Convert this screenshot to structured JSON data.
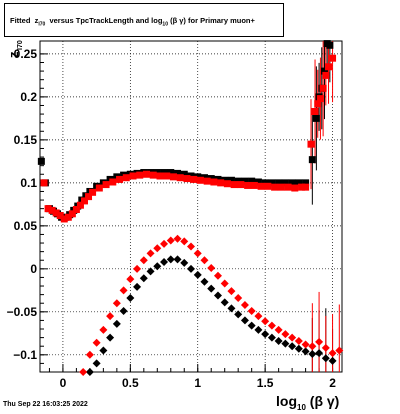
{
  "title": {
    "prefix": "Fitted",
    "z": "z",
    "z_sub": "I70",
    "middle": "versus TpcTrackLength and log",
    "log_sub": "10",
    "suffix": "(β γ) for Primary muon+"
  },
  "footer": "Thu Sep 22 16:03:25 2022",
  "xlabel": {
    "main": "log",
    "sub": "10",
    "tail": "(β γ)"
  },
  "ylabel": {
    "main": "z",
    "sub": "I70"
  },
  "chart_data": {
    "type": "scatter",
    "xlim": [
      -0.17,
      2.07
    ],
    "ylim": [
      -0.12,
      0.265
    ],
    "grid": true,
    "xticks": [
      {
        "v": 0,
        "label": "0"
      },
      {
        "v": 0.5,
        "label": "0.5"
      },
      {
        "v": 1,
        "label": "1"
      },
      {
        "v": 1.5,
        "label": "1.5"
      },
      {
        "v": 2,
        "label": "2"
      }
    ],
    "yticks": [
      {
        "v": -0.1,
        "label": "−0.1"
      },
      {
        "v": -0.05,
        "label": "−0.05"
      },
      {
        "v": 0,
        "label": "0"
      },
      {
        "v": 0.05,
        "label": "0.05"
      },
      {
        "v": 0.1,
        "label": "0.1"
      },
      {
        "v": 0.15,
        "label": "0.15"
      },
      {
        "v": 0.2,
        "label": "0.2"
      },
      {
        "v": 0.25,
        "label": "0.25"
      }
    ],
    "series": [
      {
        "color": "#000000",
        "marker": "square",
        "x": [
          -0.16,
          -0.13,
          -0.1,
          -0.07,
          -0.04,
          -0.01,
          0.02,
          0.05,
          0.08,
          0.11,
          0.14,
          0.17,
          0.2,
          0.25,
          0.3,
          0.35,
          0.4,
          0.45,
          0.5,
          0.55,
          0.6,
          0.65,
          0.7,
          0.75,
          0.8,
          0.85,
          0.9,
          0.95,
          1.0,
          1.05,
          1.1,
          1.15,
          1.2,
          1.25,
          1.3,
          1.35,
          1.4,
          1.45,
          1.5,
          1.55,
          1.6,
          1.65,
          1.7,
          1.75,
          1.8,
          1.85,
          1.88,
          1.9,
          1.92,
          1.94,
          1.96,
          1.98
        ],
        "y": [
          0.125,
          0.1,
          0.07,
          0.067,
          0.064,
          0.06,
          0.06,
          0.063,
          0.068,
          0.073,
          0.08,
          0.085,
          0.09,
          0.096,
          0.1,
          0.104,
          0.107,
          0.109,
          0.11,
          0.111,
          0.112,
          0.112,
          0.112,
          0.112,
          0.112,
          0.111,
          0.11,
          0.108,
          0.107,
          0.106,
          0.105,
          0.104,
          0.103,
          0.103,
          0.102,
          0.102,
          0.102,
          0.101,
          0.1,
          0.1,
          0.1,
          0.1,
          0.1,
          0.1,
          0.1,
          0.127,
          0.175,
          0.2,
          0.21,
          0.23,
          0.262,
          0.26
        ]
      },
      {
        "color": "#ff0000",
        "marker": "square",
        "x": [
          -0.14,
          -0.11,
          -0.08,
          -0.05,
          -0.02,
          0.01,
          0.04,
          0.07,
          0.1,
          0.13,
          0.16,
          0.19,
          0.22,
          0.27,
          0.32,
          0.37,
          0.42,
          0.47,
          0.52,
          0.57,
          0.62,
          0.67,
          0.72,
          0.77,
          0.82,
          0.87,
          0.92,
          0.97,
          1.02,
          1.07,
          1.12,
          1.17,
          1.22,
          1.27,
          1.32,
          1.37,
          1.42,
          1.47,
          1.52,
          1.57,
          1.62,
          1.67,
          1.72,
          1.77,
          1.8,
          1.84,
          1.87,
          1.89,
          1.91,
          1.93,
          1.95,
          1.97,
          2.0
        ],
        "y": [
          0.1,
          0.07,
          0.068,
          0.065,
          0.062,
          0.058,
          0.06,
          0.064,
          0.069,
          0.074,
          0.079,
          0.084,
          0.089,
          0.094,
          0.098,
          0.101,
          0.104,
          0.106,
          0.108,
          0.109,
          0.11,
          0.109,
          0.108,
          0.108,
          0.107,
          0.106,
          0.105,
          0.104,
          0.103,
          0.102,
          0.101,
          0.1,
          0.099,
          0.098,
          0.098,
          0.097,
          0.097,
          0.096,
          0.096,
          0.095,
          0.095,
          0.095,
          0.094,
          0.095,
          0.095,
          0.145,
          0.183,
          0.192,
          0.198,
          0.21,
          0.225,
          0.235,
          0.245
        ]
      },
      {
        "color": "#000000",
        "marker": "diamond",
        "x": [
          0.2,
          0.25,
          0.3,
          0.35,
          0.4,
          0.45,
          0.5,
          0.55,
          0.6,
          0.65,
          0.7,
          0.75,
          0.8,
          0.85,
          0.9,
          0.95,
          1.0,
          1.05,
          1.1,
          1.15,
          1.2,
          1.25,
          1.3,
          1.35,
          1.4,
          1.45,
          1.5,
          1.55,
          1.6,
          1.65,
          1.7,
          1.75,
          1.8,
          1.85,
          1.9,
          1.95,
          2.0
        ],
        "y": [
          -0.12,
          -0.11,
          -0.095,
          -0.08,
          -0.064,
          -0.049,
          -0.034,
          -0.021,
          -0.011,
          -0.003,
          0.003,
          0.008,
          0.011,
          0.011,
          0.007,
          0.0,
          -0.007,
          -0.015,
          -0.023,
          -0.031,
          -0.039,
          -0.046,
          -0.053,
          -0.06,
          -0.066,
          -0.071,
          -0.076,
          -0.08,
          -0.084,
          -0.087,
          -0.09,
          -0.093,
          -0.096,
          -0.099,
          -0.098,
          -0.104,
          -0.107
        ]
      },
      {
        "color": "#ff0000",
        "marker": "diamond",
        "x": [
          0.15,
          0.2,
          0.25,
          0.3,
          0.35,
          0.4,
          0.45,
          0.5,
          0.55,
          0.6,
          0.65,
          0.7,
          0.75,
          0.8,
          0.85,
          0.9,
          0.95,
          1.0,
          1.05,
          1.1,
          1.15,
          1.2,
          1.25,
          1.3,
          1.35,
          1.4,
          1.45,
          1.5,
          1.55,
          1.6,
          1.65,
          1.7,
          1.75,
          1.8,
          1.85,
          1.9,
          1.95,
          2.0,
          2.05
        ],
        "y": [
          -0.12,
          -0.1,
          -0.086,
          -0.071,
          -0.055,
          -0.04,
          -0.025,
          -0.012,
          0.0,
          0.01,
          0.018,
          0.024,
          0.029,
          0.033,
          0.035,
          0.032,
          0.026,
          0.018,
          0.01,
          0.001,
          -0.008,
          -0.017,
          -0.026,
          -0.034,
          -0.042,
          -0.049,
          -0.055,
          -0.061,
          -0.066,
          -0.071,
          -0.076,
          -0.08,
          -0.084,
          -0.088,
          -0.09,
          -0.085,
          -0.092,
          -0.098,
          -0.095
        ]
      }
    ]
  }
}
